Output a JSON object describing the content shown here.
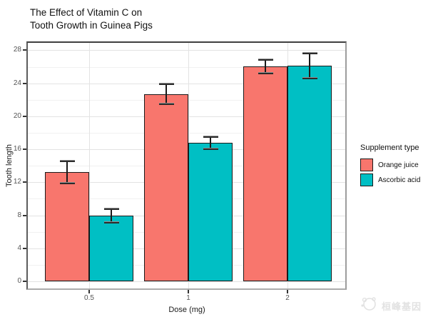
{
  "chart_data": {
    "type": "bar",
    "title": "The Effect of Vitamin C on\nTooth Growth in Guinea Pigs",
    "xlabel": "Dose (mg)",
    "ylabel": "Tooth length",
    "categories": [
      "0.5",
      "1",
      "2"
    ],
    "series": [
      {
        "name": "Orange juice",
        "color": "#F8766D",
        "values": [
          13.23,
          22.7,
          26.06
        ],
        "se": [
          1.41,
          1.24,
          0.84
        ]
      },
      {
        "name": "Ascorbic acid",
        "color": "#00BFC4",
        "values": [
          7.98,
          16.77,
          26.14
        ],
        "se": [
          0.87,
          0.8,
          1.52
        ]
      }
    ],
    "yticks": [
      0,
      4,
      8,
      12,
      16,
      20,
      24,
      28
    ],
    "yminor": [
      2,
      6,
      10,
      14,
      18,
      22,
      26
    ],
    "ylim": [
      -1.1,
      29.1
    ],
    "legend_title": "Supplement type",
    "legend_position": "right",
    "grid": true,
    "colors": {
      "grid_major": "#e3e3e3",
      "grid_minor": "#f1f1f1",
      "bar_outline": "#1a1a1a",
      "tick_text": "#555555"
    }
  },
  "watermark": {
    "icon": "panda-logo-icon",
    "text": "桓峰基因"
  }
}
